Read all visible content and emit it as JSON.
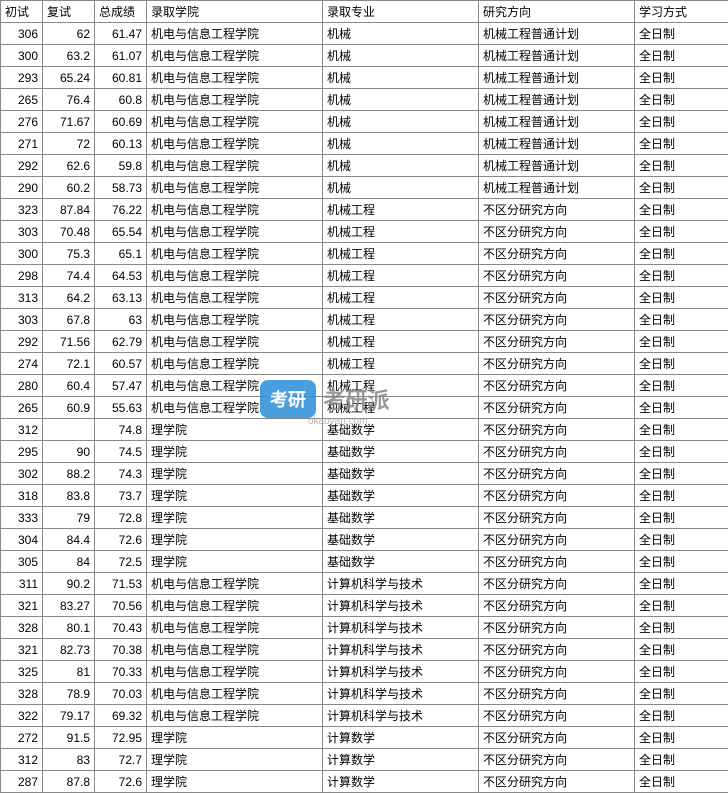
{
  "headers": {
    "prelim": "初试",
    "retest": "复试",
    "total": "总成绩",
    "school": "录取学院",
    "major": "录取专业",
    "direction": "研究方向",
    "mode": "学习方式"
  },
  "watermark": {
    "badge": "考研",
    "text": "考研派",
    "sub": "okaoyan.com"
  },
  "rows": [
    {
      "prelim": "306",
      "retest": "62",
      "total": "61.47",
      "school": "机电与信息工程学院",
      "major": "机械",
      "direction": "机械工程普通计划",
      "mode": "全日制"
    },
    {
      "prelim": "300",
      "retest": "63.2",
      "total": "61.07",
      "school": "机电与信息工程学院",
      "major": "机械",
      "direction": "机械工程普通计划",
      "mode": "全日制"
    },
    {
      "prelim": "293",
      "retest": "65.24",
      "total": "60.81",
      "school": "机电与信息工程学院",
      "major": "机械",
      "direction": "机械工程普通计划",
      "mode": "全日制"
    },
    {
      "prelim": "265",
      "retest": "76.4",
      "total": "60.8",
      "school": "机电与信息工程学院",
      "major": "机械",
      "direction": "机械工程普通计划",
      "mode": "全日制"
    },
    {
      "prelim": "276",
      "retest": "71.67",
      "total": "60.69",
      "school": "机电与信息工程学院",
      "major": "机械",
      "direction": "机械工程普通计划",
      "mode": "全日制"
    },
    {
      "prelim": "271",
      "retest": "72",
      "total": "60.13",
      "school": "机电与信息工程学院",
      "major": "机械",
      "direction": "机械工程普通计划",
      "mode": "全日制"
    },
    {
      "prelim": "292",
      "retest": "62.6",
      "total": "59.8",
      "school": "机电与信息工程学院",
      "major": "机械",
      "direction": "机械工程普通计划",
      "mode": "全日制"
    },
    {
      "prelim": "290",
      "retest": "60.2",
      "total": "58.73",
      "school": "机电与信息工程学院",
      "major": "机械",
      "direction": "机械工程普通计划",
      "mode": "全日制"
    },
    {
      "prelim": "323",
      "retest": "87.84",
      "total": "76.22",
      "school": "机电与信息工程学院",
      "major": "机械工程",
      "direction": "不区分研究方向",
      "mode": "全日制"
    },
    {
      "prelim": "303",
      "retest": "70.48",
      "total": "65.54",
      "school": "机电与信息工程学院",
      "major": "机械工程",
      "direction": "不区分研究方向",
      "mode": "全日制"
    },
    {
      "prelim": "300",
      "retest": "75.3",
      "total": "65.1",
      "school": "机电与信息工程学院",
      "major": "机械工程",
      "direction": "不区分研究方向",
      "mode": "全日制"
    },
    {
      "prelim": "298",
      "retest": "74.4",
      "total": "64.53",
      "school": "机电与信息工程学院",
      "major": "机械工程",
      "direction": "不区分研究方向",
      "mode": "全日制"
    },
    {
      "prelim": "313",
      "retest": "64.2",
      "total": "63.13",
      "school": "机电与信息工程学院",
      "major": "机械工程",
      "direction": "不区分研究方向",
      "mode": "全日制"
    },
    {
      "prelim": "303",
      "retest": "67.8",
      "total": "63",
      "school": "机电与信息工程学院",
      "major": "机械工程",
      "direction": "不区分研究方向",
      "mode": "全日制"
    },
    {
      "prelim": "292",
      "retest": "71.56",
      "total": "62.79",
      "school": "机电与信息工程学院",
      "major": "机械工程",
      "direction": "不区分研究方向",
      "mode": "全日制"
    },
    {
      "prelim": "274",
      "retest": "72.1",
      "total": "60.57",
      "school": "机电与信息工程学院",
      "major": "机械工程",
      "direction": "不区分研究方向",
      "mode": "全日制"
    },
    {
      "prelim": "280",
      "retest": "60.4",
      "total": "57.47",
      "school": "机电与信息工程学院",
      "major": "机械工程",
      "direction": "不区分研究方向",
      "mode": "全日制"
    },
    {
      "prelim": "265",
      "retest": "60.9",
      "total": "55.63",
      "school": "机电与信息工程学院",
      "major": "机械工程",
      "direction": "不区分研究方向",
      "mode": "全日制"
    },
    {
      "prelim": "312",
      "retest": "",
      "total": "74.8",
      "school": "理学院",
      "major": "基础数学",
      "direction": "不区分研究方向",
      "mode": "全日制"
    },
    {
      "prelim": "295",
      "retest": "90",
      "total": "74.5",
      "school": "理学院",
      "major": "基础数学",
      "direction": "不区分研究方向",
      "mode": "全日制"
    },
    {
      "prelim": "302",
      "retest": "88.2",
      "total": "74.3",
      "school": "理学院",
      "major": "基础数学",
      "direction": "不区分研究方向",
      "mode": "全日制"
    },
    {
      "prelim": "318",
      "retest": "83.8",
      "total": "73.7",
      "school": "理学院",
      "major": "基础数学",
      "direction": "不区分研究方向",
      "mode": "全日制"
    },
    {
      "prelim": "333",
      "retest": "79",
      "total": "72.8",
      "school": "理学院",
      "major": "基础数学",
      "direction": "不区分研究方向",
      "mode": "全日制"
    },
    {
      "prelim": "304",
      "retest": "84.4",
      "total": "72.6",
      "school": "理学院",
      "major": "基础数学",
      "direction": "不区分研究方向",
      "mode": "全日制"
    },
    {
      "prelim": "305",
      "retest": "84",
      "total": "72.5",
      "school": "理学院",
      "major": "基础数学",
      "direction": "不区分研究方向",
      "mode": "全日制"
    },
    {
      "prelim": "311",
      "retest": "90.2",
      "total": "71.53",
      "school": "机电与信息工程学院",
      "major": "计算机科学与技术",
      "direction": "不区分研究方向",
      "mode": "全日制"
    },
    {
      "prelim": "321",
      "retest": "83.27",
      "total": "70.56",
      "school": "机电与信息工程学院",
      "major": "计算机科学与技术",
      "direction": "不区分研究方向",
      "mode": "全日制"
    },
    {
      "prelim": "328",
      "retest": "80.1",
      "total": "70.43",
      "school": "机电与信息工程学院",
      "major": "计算机科学与技术",
      "direction": "不区分研究方向",
      "mode": "全日制"
    },
    {
      "prelim": "321",
      "retest": "82.73",
      "total": "70.38",
      "school": "机电与信息工程学院",
      "major": "计算机科学与技术",
      "direction": "不区分研究方向",
      "mode": "全日制"
    },
    {
      "prelim": "325",
      "retest": "81",
      "total": "70.33",
      "school": "机电与信息工程学院",
      "major": "计算机科学与技术",
      "direction": "不区分研究方向",
      "mode": "全日制"
    },
    {
      "prelim": "328",
      "retest": "78.9",
      "total": "70.03",
      "school": "机电与信息工程学院",
      "major": "计算机科学与技术",
      "direction": "不区分研究方向",
      "mode": "全日制"
    },
    {
      "prelim": "322",
      "retest": "79.17",
      "total": "69.32",
      "school": "机电与信息工程学院",
      "major": "计算机科学与技术",
      "direction": "不区分研究方向",
      "mode": "全日制"
    },
    {
      "prelim": "272",
      "retest": "91.5",
      "total": "72.95",
      "school": "理学院",
      "major": "计算数学",
      "direction": "不区分研究方向",
      "mode": "全日制"
    },
    {
      "prelim": "312",
      "retest": "83",
      "total": "72.7",
      "school": "理学院",
      "major": "计算数学",
      "direction": "不区分研究方向",
      "mode": "全日制"
    },
    {
      "prelim": "287",
      "retest": "87.8",
      "total": "72.6",
      "school": "理学院",
      "major": "计算数学",
      "direction": "不区分研究方向",
      "mode": "全日制"
    }
  ]
}
